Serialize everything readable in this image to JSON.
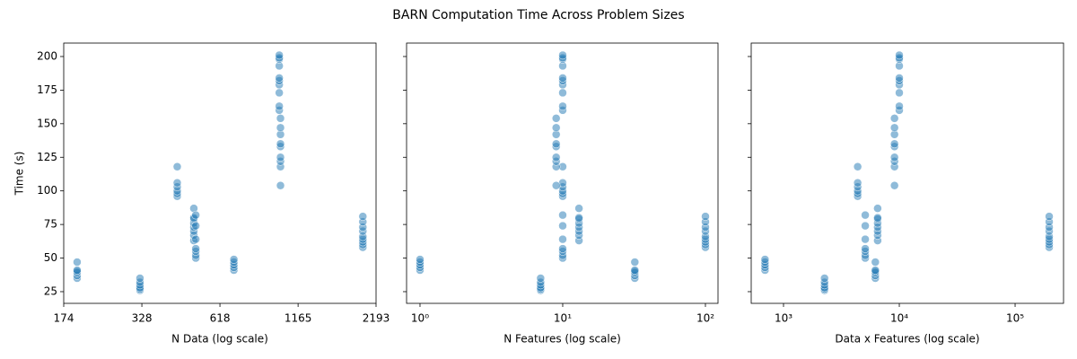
{
  "title": "BARN Computation Time Across Problem Sizes",
  "chart_data": [
    {
      "type": "scatter",
      "xlabel": "N Data (log scale)",
      "ylabel": "Time (s)",
      "xscale": "log",
      "color": "#1f77b4",
      "alpha": 0.5,
      "xlim": [
        174,
        2193
      ],
      "xticks": [
        174,
        328,
        618,
        1165,
        2193
      ],
      "ylim": [
        16.3,
        210
      ],
      "yticks": [
        25,
        50,
        75,
        100,
        125,
        150,
        175,
        200
      ],
      "x": [
        194,
        194,
        194,
        194,
        194,
        194,
        323,
        323,
        323,
        323,
        323,
        323,
        437,
        437,
        437,
        437,
        437,
        437,
        500,
        500,
        500,
        500,
        500,
        500,
        500,
        500,
        508,
        508,
        508,
        508,
        508,
        508,
        508,
        692,
        692,
        692,
        692,
        692,
        1000,
        1000,
        1000,
        1000,
        1000,
        1000,
        1000,
        1000,
        1000,
        1000,
        1010,
        1010,
        1010,
        1010,
        1010,
        1010,
        1010,
        1010,
        1010,
        1970,
        1970,
        1970,
        1970,
        1970,
        1970,
        1970,
        1970,
        1970
      ],
      "values": [
        35,
        37,
        39,
        40,
        41,
        47,
        26,
        27,
        28,
        30,
        32,
        35,
        96,
        98,
        100,
        103,
        106,
        118,
        63,
        67,
        70,
        73,
        76,
        79,
        80,
        87,
        50,
        52,
        55,
        57,
        64,
        74,
        82,
        41,
        43,
        45,
        47,
        49,
        160,
        163,
        173,
        179,
        182,
        184,
        193,
        198,
        199,
        201,
        104,
        118,
        122,
        125,
        133,
        135,
        142,
        147,
        154,
        58,
        60,
        62,
        64,
        66,
        70,
        73,
        77,
        81
      ]
    },
    {
      "type": "scatter",
      "xlabel": "N Features (log scale)",
      "xscale": "log",
      "color": "#1f77b4",
      "alpha": 0.5,
      "xlim": [
        0.805,
        122.5
      ],
      "xticks": [
        {
          "value": 1,
          "label": "10⁰"
        },
        {
          "value": 10,
          "label": "10¹"
        },
        {
          "value": 100,
          "label": "10²"
        }
      ],
      "ylim": [
        16.3,
        210
      ],
      "yticks": [
        25,
        50,
        75,
        100,
        125,
        150,
        175,
        200
      ],
      "x": [
        32,
        32,
        32,
        32,
        32,
        32,
        7,
        7,
        7,
        7,
        7,
        7,
        10,
        10,
        10,
        10,
        10,
        10,
        13,
        13,
        13,
        13,
        13,
        13,
        13,
        13,
        10,
        10,
        10,
        10,
        10,
        10,
        10,
        1,
        1,
        1,
        1,
        1,
        10,
        10,
        10,
        10,
        10,
        10,
        10,
        10,
        10,
        10,
        9,
        9,
        9,
        9,
        9,
        9,
        9,
        9,
        9,
        100,
        100,
        100,
        100,
        100,
        100,
        100,
        100,
        100
      ],
      "values": [
        35,
        37,
        39,
        40,
        41,
        47,
        26,
        27,
        28,
        30,
        32,
        35,
        96,
        98,
        100,
        103,
        106,
        118,
        63,
        67,
        70,
        73,
        76,
        79,
        80,
        87,
        50,
        52,
        55,
        57,
        64,
        74,
        82,
        41,
        43,
        45,
        47,
        49,
        160,
        163,
        173,
        179,
        182,
        184,
        193,
        198,
        199,
        201,
        104,
        118,
        122,
        125,
        133,
        135,
        142,
        147,
        154,
        58,
        60,
        62,
        64,
        66,
        70,
        73,
        77,
        81
      ]
    },
    {
      "type": "scatter",
      "xlabel": "Data x Features (log scale)",
      "xscale": "log",
      "color": "#1f77b4",
      "alpha": 0.5,
      "xlim": [
        526,
        262000
      ],
      "xticks": [
        {
          "value": 1000,
          "label": "10³"
        },
        {
          "value": 10000,
          "label": "10⁴"
        },
        {
          "value": 100000,
          "label": "10⁵"
        }
      ],
      "ylim": [
        16.3,
        210
      ],
      "yticks": [
        25,
        50,
        75,
        100,
        125,
        150,
        175,
        200
      ],
      "x": [
        6208,
        6208,
        6208,
        6208,
        6208,
        6208,
        2261,
        2261,
        2261,
        2261,
        2261,
        2261,
        4370,
        4370,
        4370,
        4370,
        4370,
        4370,
        6500,
        6500,
        6500,
        6500,
        6500,
        6500,
        6500,
        6500,
        5080,
        5080,
        5080,
        5080,
        5080,
        5080,
        5080,
        692,
        692,
        692,
        692,
        692,
        10000,
        10000,
        10000,
        10000,
        10000,
        10000,
        10000,
        10000,
        10000,
        10000,
        9090,
        9090,
        9090,
        9090,
        9090,
        9090,
        9090,
        9090,
        9090,
        197000,
        197000,
        197000,
        197000,
        197000,
        197000,
        197000,
        197000,
        197000
      ],
      "values": [
        35,
        37,
        39,
        40,
        41,
        47,
        26,
        27,
        28,
        30,
        32,
        35,
        96,
        98,
        100,
        103,
        106,
        118,
        63,
        67,
        70,
        73,
        76,
        79,
        80,
        87,
        50,
        52,
        55,
        57,
        64,
        74,
        82,
        41,
        43,
        45,
        47,
        49,
        160,
        163,
        173,
        179,
        182,
        184,
        193,
        198,
        199,
        201,
        104,
        118,
        122,
        125,
        133,
        135,
        142,
        147,
        154,
        58,
        60,
        62,
        64,
        66,
        70,
        73,
        77,
        81
      ]
    }
  ]
}
